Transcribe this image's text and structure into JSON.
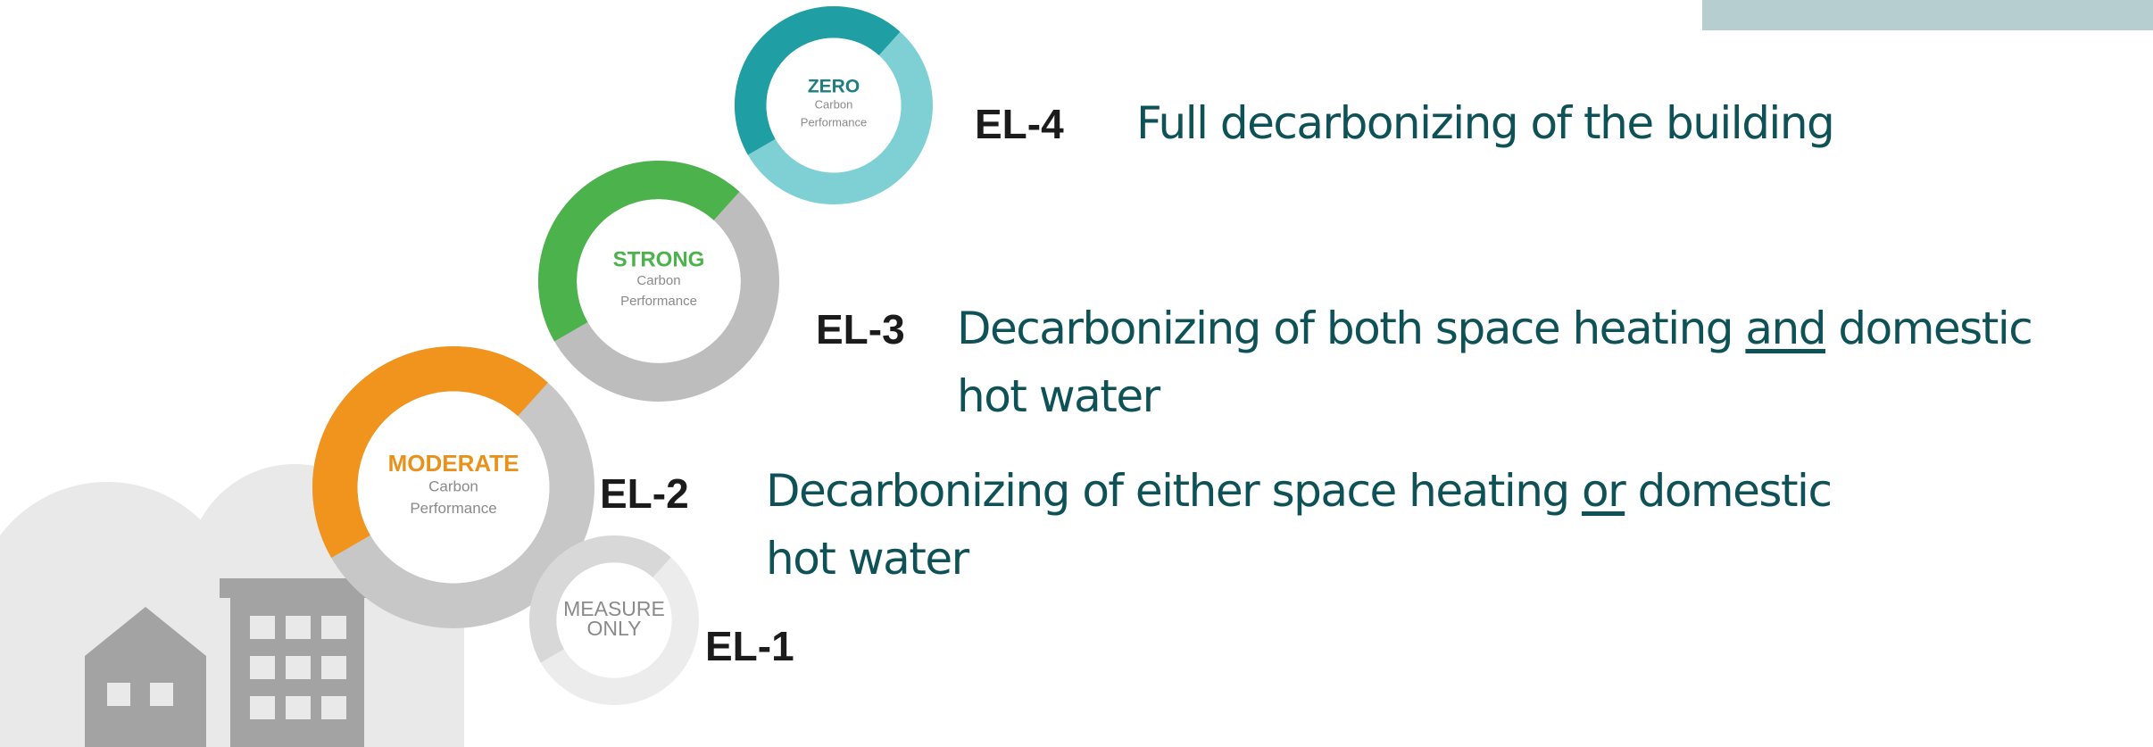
{
  "levels": [
    {
      "code": "EL-4",
      "badge": [
        "ZERO",
        "Carbon",
        "Performance"
      ],
      "lines": [
        [
          {
            "text": "Full decarbonizing of the building"
          }
        ]
      ]
    },
    {
      "code": "EL-3",
      "badge": [
        "STRONG",
        "Carbon",
        "Performance"
      ],
      "lines": [
        [
          {
            "text": "Decarbonizing of both space heating "
          },
          {
            "text": "and",
            "underline": true
          },
          {
            "text": " domestic"
          }
        ],
        [
          {
            "text": "hot water"
          }
        ]
      ]
    },
    {
      "code": "EL-2",
      "badge": [
        "MODERATE",
        "Carbon",
        "Performance"
      ],
      "lines": [
        [
          {
            "text": "Decarbonizing of either space heating "
          },
          {
            "text": "or",
            "underline": true
          },
          {
            "text": " domestic"
          }
        ],
        [
          {
            "text": "hot water"
          }
        ]
      ]
    },
    {
      "code": "EL-1",
      "badge": [
        "MEASURE",
        "ONLY"
      ],
      "lines": [
        [
          {
            "text": ""
          }
        ]
      ]
    }
  ]
}
